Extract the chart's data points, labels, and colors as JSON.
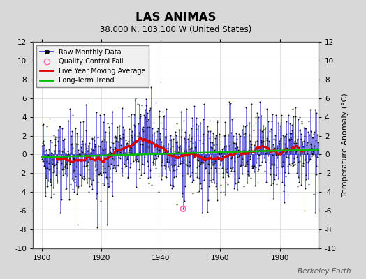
{
  "title": "LAS ANIMAS",
  "subtitle": "38.000 N, 103.100 W (United States)",
  "ylabel": "Temperature Anomaly (°C)",
  "credit": "Berkeley Earth",
  "xlim": [
    1897,
    1993
  ],
  "ylim": [
    -10,
    12
  ],
  "yticks": [
    -10,
    -8,
    -6,
    -4,
    -2,
    0,
    2,
    4,
    6,
    8,
    10,
    12
  ],
  "xticks": [
    1900,
    1920,
    1940,
    1960,
    1980
  ],
  "bg_color": "#d8d8d8",
  "plot_bg_color": "#ffffff",
  "raw_line_color": "#3333cc",
  "raw_dot_color": "#111111",
  "ma_color": "#dd0000",
  "trend_color": "#00bb00",
  "qc_color": "#ff69b4",
  "seed": 42,
  "n_years": 93,
  "start_year": 1900,
  "noise_std": 2.2
}
